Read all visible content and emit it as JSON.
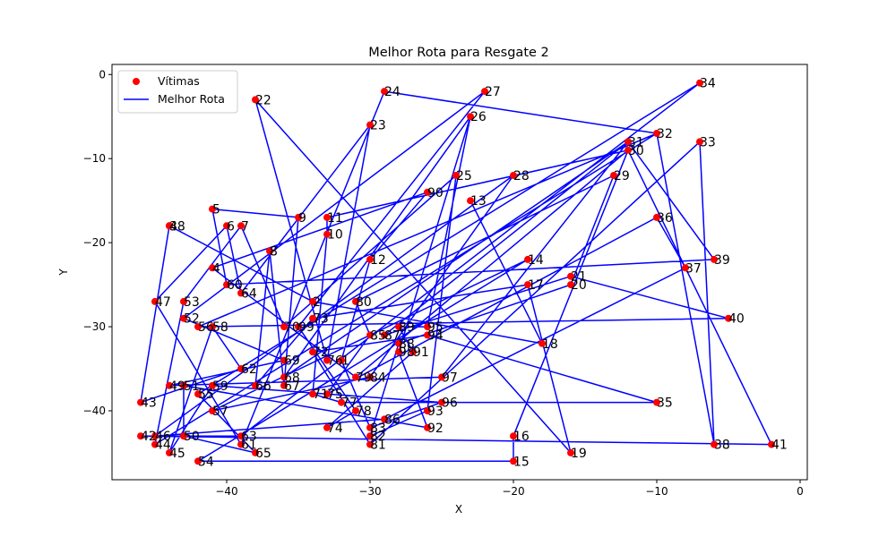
{
  "chart_data": {
    "type": "scatter",
    "title": "Melhor Rota para Resgate 2",
    "xlabel": "X",
    "ylabel": "Y",
    "xlim": [
      -48,
      0.5
    ],
    "ylim": [
      -48.2,
      1.2
    ],
    "xticks": [
      -40,
      -30,
      -20,
      -10,
      0
    ],
    "yticks": [
      0,
      -10,
      -20,
      -30,
      -40
    ],
    "xtick_labels": [
      "−40",
      "−30",
      "−20",
      "−10",
      "0"
    ],
    "ytick_labels": [
      "0",
      "−10",
      "−20",
      "−30",
      "−40"
    ],
    "grid": false,
    "legend_position": "upper-left",
    "series": [
      {
        "name": "Vítimas",
        "kind": "scatter",
        "color": "#ff0000"
      },
      {
        "name": "Melhor Rota",
        "kind": "line",
        "color": "#0000ff"
      }
    ],
    "points": [
      {
        "label": "1",
        "x": -32,
        "y": -34
      },
      {
        "label": "2",
        "x": -34,
        "y": -27
      },
      {
        "label": "3",
        "x": -44,
        "y": -18
      },
      {
        "label": "4",
        "x": -41,
        "y": -23
      },
      {
        "label": "5",
        "x": -41,
        "y": -16
      },
      {
        "label": "6",
        "x": -40,
        "y": -18
      },
      {
        "label": "7",
        "x": -39,
        "y": -18
      },
      {
        "label": "8",
        "x": -37,
        "y": -21
      },
      {
        "label": "9",
        "x": -35,
        "y": -17
      },
      {
        "label": "10",
        "x": -33,
        "y": -19
      },
      {
        "label": "11",
        "x": -33,
        "y": -17
      },
      {
        "label": "12",
        "x": -30,
        "y": -22
      },
      {
        "label": "13",
        "x": -23,
        "y": -15
      },
      {
        "label": "14",
        "x": -19,
        "y": -22
      },
      {
        "label": "15",
        "x": -20,
        "y": -46
      },
      {
        "label": "16",
        "x": -20,
        "y": -43
      },
      {
        "label": "17",
        "x": -19,
        "y": -25
      },
      {
        "label": "18",
        "x": -18,
        "y": -32
      },
      {
        "label": "19",
        "x": -16,
        "y": -45
      },
      {
        "label": "20",
        "x": -16,
        "y": -25
      },
      {
        "label": "21",
        "x": -16,
        "y": -24
      },
      {
        "label": "22",
        "x": -38,
        "y": -3
      },
      {
        "label": "23",
        "x": -30,
        "y": -6
      },
      {
        "label": "24",
        "x": -29,
        "y": -2
      },
      {
        "label": "25",
        "x": -24,
        "y": -12
      },
      {
        "label": "26",
        "x": -23,
        "y": -5
      },
      {
        "label": "27",
        "x": -22,
        "y": -2
      },
      {
        "label": "28",
        "x": -20,
        "y": -12
      },
      {
        "label": "29",
        "x": -13,
        "y": -12
      },
      {
        "label": "30",
        "x": -12,
        "y": -9
      },
      {
        "label": "31",
        "x": -12,
        "y": -8
      },
      {
        "label": "32",
        "x": -10,
        "y": -7
      },
      {
        "label": "33",
        "x": -7,
        "y": -8
      },
      {
        "label": "34",
        "x": -7,
        "y": -1
      },
      {
        "label": "35",
        "x": -10,
        "y": -39
      },
      {
        "label": "36",
        "x": -10,
        "y": -17
      },
      {
        "label": "37",
        "x": -8,
        "y": -23
      },
      {
        "label": "38",
        "x": -6,
        "y": -44
      },
      {
        "label": "39",
        "x": -6,
        "y": -22
      },
      {
        "label": "40",
        "x": -5,
        "y": -29
      },
      {
        "label": "41",
        "x": -2,
        "y": -44
      },
      {
        "label": "42",
        "x": -46,
        "y": -43
      },
      {
        "label": "43",
        "x": -46,
        "y": -39
      },
      {
        "label": "44",
        "x": -45,
        "y": -44
      },
      {
        "label": "45",
        "x": -44,
        "y": -45
      },
      {
        "label": "46",
        "x": -45,
        "y": -43
      },
      {
        "label": "47",
        "x": -45,
        "y": -27
      },
      {
        "label": "48",
        "x": -44,
        "y": -18
      },
      {
        "label": "49",
        "x": -44,
        "y": -37
      },
      {
        "label": "50",
        "x": -43,
        "y": -43
      },
      {
        "label": "51",
        "x": -43,
        "y": -37
      },
      {
        "label": "52",
        "x": -43,
        "y": -29
      },
      {
        "label": "53",
        "x": -43,
        "y": -27
      },
      {
        "label": "54",
        "x": -42,
        "y": -46
      },
      {
        "label": "55",
        "x": -42,
        "y": -38
      },
      {
        "label": "56",
        "x": -42,
        "y": -30
      },
      {
        "label": "57",
        "x": -41,
        "y": -40
      },
      {
        "label": "58",
        "x": -41,
        "y": -30
      },
      {
        "label": "59",
        "x": -41,
        "y": -37
      },
      {
        "label": "60",
        "x": -40,
        "y": -25
      },
      {
        "label": "61",
        "x": -39,
        "y": -44
      },
      {
        "label": "62",
        "x": -39,
        "y": -35
      },
      {
        "label": "63",
        "x": -39,
        "y": -43
      },
      {
        "label": "64",
        "x": -39,
        "y": -26
      },
      {
        "label": "65",
        "x": -38,
        "y": -45
      },
      {
        "label": "66",
        "x": -38,
        "y": -37
      },
      {
        "label": "67",
        "x": -36,
        "y": -37
      },
      {
        "label": "68",
        "x": -36,
        "y": -36
      },
      {
        "label": "69",
        "x": -36,
        "y": -34
      },
      {
        "label": "70",
        "x": -36,
        "y": -30
      },
      {
        "label": "71",
        "x": -34,
        "y": -38
      },
      {
        "label": "72",
        "x": -34,
        "y": -33
      },
      {
        "label": "73",
        "x": -34,
        "y": -29
      },
      {
        "label": "74",
        "x": -33,
        "y": -42
      },
      {
        "label": "75",
        "x": -33,
        "y": -38
      },
      {
        "label": "76",
        "x": -33,
        "y": -34
      },
      {
        "label": "77",
        "x": -32,
        "y": -39
      },
      {
        "label": "78",
        "x": -31,
        "y": -40
      },
      {
        "label": "79",
        "x": -31,
        "y": -36
      },
      {
        "label": "80",
        "x": -31,
        "y": -27
      },
      {
        "label": "81",
        "x": -30,
        "y": -44
      },
      {
        "label": "82",
        "x": -30,
        "y": -43
      },
      {
        "label": "83",
        "x": -30,
        "y": -42
      },
      {
        "label": "84",
        "x": -30,
        "y": -36
      },
      {
        "label": "85",
        "x": -30,
        "y": -31
      },
      {
        "label": "86",
        "x": -29,
        "y": -41
      },
      {
        "label": "87",
        "x": -29,
        "y": -31
      },
      {
        "label": "88",
        "x": -28,
        "y": -32
      },
      {
        "label": "89",
        "x": -28,
        "y": -30
      },
      {
        "label": "90",
        "x": -26,
        "y": -14
      },
      {
        "label": "91",
        "x": -27,
        "y": -33
      },
      {
        "label": "92",
        "x": -26,
        "y": -42
      },
      {
        "label": "93",
        "x": -26,
        "y": -40
      },
      {
        "label": "94",
        "x": -26,
        "y": -31
      },
      {
        "label": "95",
        "x": -26,
        "y": -30
      },
      {
        "label": "96",
        "x": -25,
        "y": -39
      },
      {
        "label": "97",
        "x": -25,
        "y": -36
      },
      {
        "label": "98",
        "x": -28,
        "y": -33
      },
      {
        "label": "99",
        "x": -35,
        "y": -30
      }
    ],
    "route": [
      "0",
      "13",
      "18",
      "2",
      "3",
      "43",
      "62",
      "58",
      "45",
      "59",
      "96",
      "83",
      "1",
      "12",
      "90",
      "4",
      "79",
      "30",
      "11",
      "10",
      "71",
      "77",
      "35",
      "94",
      "72",
      "81",
      "33",
      "38",
      "32",
      "56",
      "40",
      "21",
      "87",
      "31",
      "39",
      "60",
      "5",
      "9",
      "67",
      "8",
      "66",
      "73",
      "17",
      "19",
      "22",
      "76",
      "23",
      "64",
      "6",
      "47",
      "61",
      "24",
      "32",
      "44",
      "53",
      "7",
      "70",
      "25",
      "93",
      "82",
      "88",
      "20",
      "29",
      "80",
      "85",
      "75",
      "36",
      "37",
      "86",
      "46",
      "28",
      "84",
      "57",
      "14",
      "54",
      "15",
      "16",
      "30",
      "41",
      "42",
      "63",
      "34",
      "55",
      "65",
      "50",
      "51",
      "92",
      "98",
      "26",
      "68",
      "31",
      "97",
      "49",
      "69",
      "52",
      "27",
      "99",
      "78",
      "74",
      "91",
      "89",
      "95",
      "26",
      "0"
    ]
  }
}
